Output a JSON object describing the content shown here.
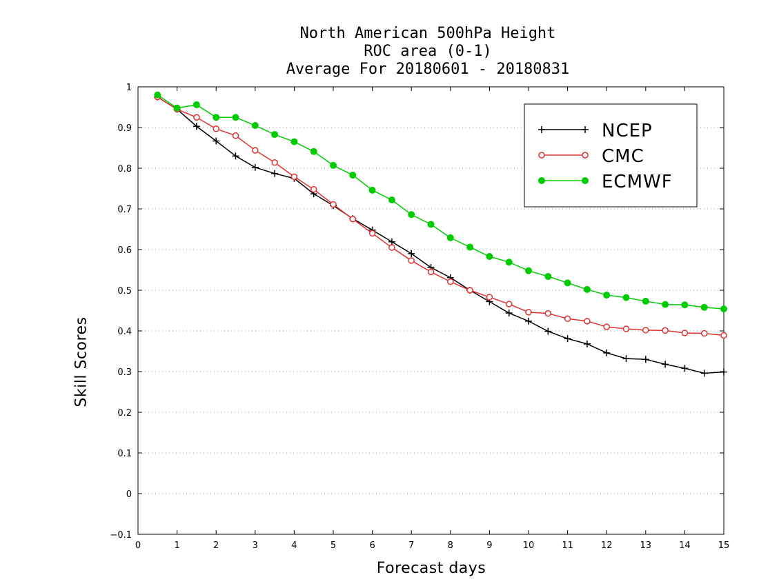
{
  "chart_data": {
    "type": "line",
    "title": [
      "North American 500hPa Height",
      "ROC area (0-1)",
      "Average For 20180601 - 20180831"
    ],
    "xlabel": "Forecast days",
    "ylabel": "Skill Scores",
    "xlim": [
      0,
      15
    ],
    "ylim": [
      -0.1,
      1
    ],
    "xticks": [
      "0",
      "1",
      "2",
      "3",
      "4",
      "5",
      "6",
      "7",
      "8",
      "9",
      "10",
      "11",
      "12",
      "13",
      "14",
      "15"
    ],
    "yticks": [
      {
        "v": -0.1,
        "label": "−0.1"
      },
      {
        "v": 0,
        "label": "0"
      },
      {
        "v": 0.1,
        "label": "0.1"
      },
      {
        "v": 0.2,
        "label": "0.2"
      },
      {
        "v": 0.3,
        "label": "0.3"
      },
      {
        "v": 0.4,
        "label": "0.4"
      },
      {
        "v": 0.5,
        "label": "0.5"
      },
      {
        "v": 0.6,
        "label": "0.6"
      },
      {
        "v": 0.7,
        "label": "0.7"
      },
      {
        "v": 0.8,
        "label": "0.8"
      },
      {
        "v": 0.9,
        "label": "0.9"
      },
      {
        "v": 1,
        "label": "1"
      }
    ],
    "grid": "horizontal-dotted",
    "legend_position": "top-right",
    "x": [
      0.5,
      1,
      1.5,
      2,
      2.5,
      3,
      3.5,
      4,
      4.5,
      5,
      5.5,
      6,
      6.5,
      7,
      7.5,
      8,
      8.5,
      9,
      9.5,
      10,
      10.5,
      11,
      11.5,
      12,
      12.5,
      13,
      13.5,
      14,
      14.5,
      15
    ],
    "series": [
      {
        "name": "NCEP",
        "color": "#000000",
        "marker": "plus",
        "values": [
          0.975,
          0.945,
          0.903,
          0.867,
          0.83,
          0.802,
          0.787,
          0.775,
          0.737,
          0.708,
          0.676,
          0.648,
          0.619,
          0.59,
          0.556,
          0.531,
          0.5,
          0.472,
          0.444,
          0.424,
          0.399,
          0.381,
          0.368,
          0.346,
          0.332,
          0.33,
          0.318,
          0.308,
          0.296,
          0.299
        ]
      },
      {
        "name": "CMC",
        "color": "#e03030",
        "marker": "open-circle",
        "values": [
          0.975,
          0.945,
          0.925,
          0.897,
          0.88,
          0.844,
          0.814,
          0.779,
          0.748,
          0.711,
          0.675,
          0.64,
          0.605,
          0.573,
          0.545,
          0.521,
          0.5,
          0.483,
          0.466,
          0.446,
          0.443,
          0.43,
          0.424,
          0.41,
          0.405,
          0.402,
          0.401,
          0.395,
          0.394,
          0.389
        ]
      },
      {
        "name": "ECMWF",
        "color": "#00cc00",
        "marker": "filled-circle",
        "values": [
          0.98,
          0.948,
          0.956,
          0.925,
          0.925,
          0.905,
          0.883,
          0.865,
          0.841,
          0.807,
          0.783,
          0.746,
          0.722,
          0.686,
          0.662,
          0.629,
          0.606,
          0.583,
          0.569,
          0.548,
          0.534,
          0.518,
          0.502,
          0.488,
          0.482,
          0.473,
          0.465,
          0.464,
          0.458,
          0.454
        ]
      }
    ]
  }
}
